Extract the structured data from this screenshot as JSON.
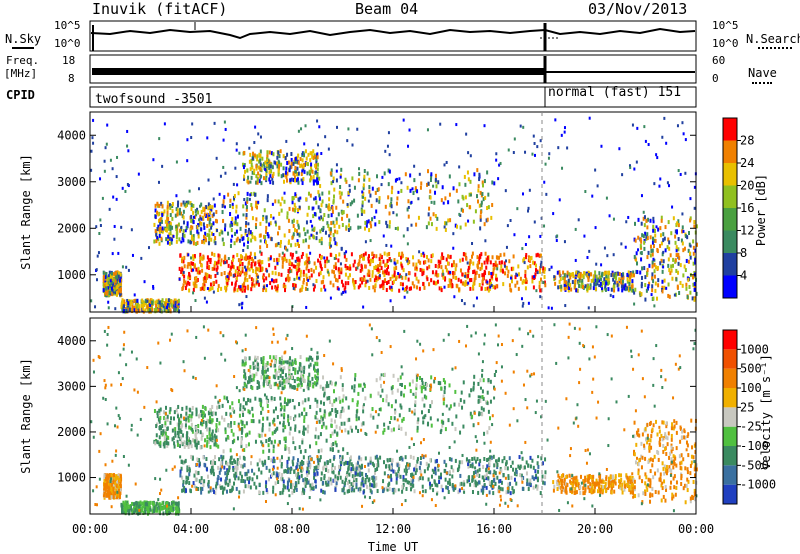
{
  "header": {
    "station": "Inuvik (fitACF)",
    "beam": "Beam 04",
    "date": "03/Nov/2013"
  },
  "nsky_panel": {
    "left_label": "N.Sky",
    "right_label": "N.Search",
    "left_ticks": [
      "10^5",
      "10^0"
    ],
    "right_ticks": [
      "10^5",
      "10^0"
    ]
  },
  "freq_panel": {
    "left_label_line1": "Freq.",
    "left_label_line2": "[MHz]",
    "right_label": "Nave",
    "left_ticks": [
      "18",
      "8"
    ],
    "right_ticks": [
      "60",
      "0"
    ]
  },
  "cpid_panel": {
    "label": "CPID",
    "mode_1": "twofsound  -3501",
    "mode_2": "normal (fast) 151"
  },
  "chart_data": [
    {
      "type": "heatmap",
      "name": "power",
      "ylabel": "Slant Range [km]",
      "ylim": [
        200,
        4500
      ],
      "yticks": [
        "1000",
        "2000",
        "3000",
        "4000"
      ],
      "ytick_values": [
        1000,
        2000,
        3000,
        4000
      ],
      "xlim": [
        0,
        24
      ],
      "colorbar_label": "Power [dB]",
      "colorbar_ticks": [
        "4",
        "8",
        "12",
        "16",
        "20",
        "24",
        "28"
      ],
      "colorbar_colors": [
        "#0000ff",
        "#2040a0",
        "#3a8a60",
        "#4aa040",
        "#90c020",
        "#e8c000",
        "#f08000",
        "#ff0000"
      ],
      "mode_change_hour": 18.0
    },
    {
      "type": "heatmap",
      "name": "velocity",
      "ylabel": "Slant Range [km]",
      "ylim": [
        200,
        4500
      ],
      "yticks": [
        "1000",
        "2000",
        "3000",
        "4000"
      ],
      "ytick_values": [
        1000,
        2000,
        3000,
        4000
      ],
      "xlim": [
        0,
        24
      ],
      "xlabel": "Time UT",
      "xticks": [
        "00:00",
        "04:00",
        "08:00",
        "12:00",
        "16:00",
        "20:00",
        "00:00"
      ],
      "xtick_values": [
        0,
        4,
        8,
        12,
        16,
        20,
        24
      ],
      "colorbar_label": "Velocity  [m s⁻¹]",
      "colorbar_ticks": [
        "1000",
        "500",
        "100",
        "25",
        "-25",
        "-100",
        "-500",
        "-1000"
      ],
      "colorbar_colors": [
        "#2040c0",
        "#3a70a0",
        "#3a8a60",
        "#50c040",
        "#c8c8c0",
        "#f0b000",
        "#f08000",
        "#f05000",
        "#ff0000"
      ],
      "mode_change_hour": 18.0
    }
  ]
}
